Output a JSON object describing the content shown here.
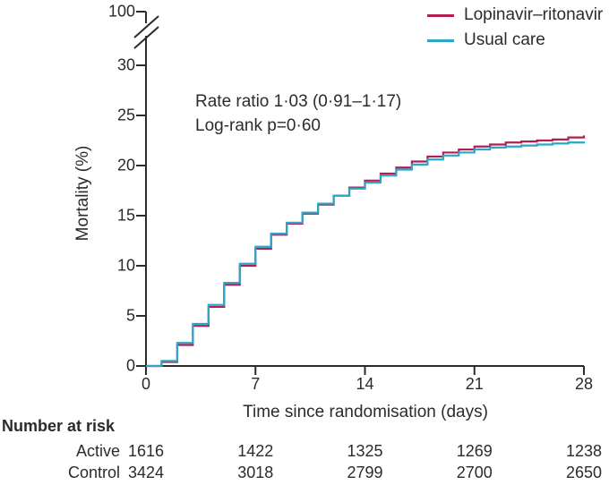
{
  "figure": {
    "annotation_line1": "Rate ratio 1·03 (0·91–1·17)",
    "annotation_line2": "Log-rank p=0·60"
  },
  "chart_data": {
    "type": "line",
    "subtype": "kaplan-meier-step",
    "title": "",
    "xlabel": "Time since randomisation (days)",
    "ylabel": "Mortality (%)",
    "x_days": [
      0,
      1,
      2,
      3,
      4,
      5,
      6,
      7,
      8,
      9,
      10,
      11,
      12,
      13,
      14,
      15,
      16,
      17,
      18,
      19,
      20,
      21,
      22,
      23,
      24,
      25,
      26,
      27,
      28
    ],
    "series": [
      {
        "name": "Lopinavir–ritonavir",
        "color": "#b21f55",
        "values": [
          0,
          0.4,
          2.1,
          4.0,
          5.9,
          8.1,
          10.0,
          11.7,
          13.1,
          14.2,
          15.2,
          16.1,
          17.0,
          17.8,
          18.5,
          19.2,
          19.8,
          20.4,
          20.9,
          21.3,
          21.6,
          21.9,
          22.1,
          22.3,
          22.4,
          22.5,
          22.6,
          22.8,
          23.0
        ]
      },
      {
        "name": "Usual care",
        "color": "#2ba6c6",
        "values": [
          0,
          0.5,
          2.3,
          4.2,
          6.1,
          8.3,
          10.2,
          11.9,
          13.2,
          14.3,
          15.3,
          16.2,
          17.0,
          17.7,
          18.3,
          19.0,
          19.6,
          20.1,
          20.6,
          21.0,
          21.3,
          21.6,
          21.8,
          21.9,
          22.0,
          22.1,
          22.2,
          22.3,
          22.4
        ]
      }
    ],
    "x_ticks": [
      0,
      7,
      14,
      21,
      28
    ],
    "y_ticks": [
      0,
      5,
      10,
      15,
      20,
      25,
      30
    ],
    "y_break_label": "100",
    "xlim": [
      0,
      28
    ],
    "ylim": [
      0,
      30
    ],
    "grid": false,
    "legend_position": "top-right",
    "axis_color": "#2d2b2a"
  },
  "risk_table": {
    "header": "Number at risk",
    "rows": [
      {
        "label": "Active",
        "values": [
          "1616",
          "1422",
          "1325",
          "1269",
          "1238"
        ]
      },
      {
        "label": "Control",
        "values": [
          "3424",
          "3018",
          "2799",
          "2700",
          "2650"
        ]
      }
    ]
  }
}
